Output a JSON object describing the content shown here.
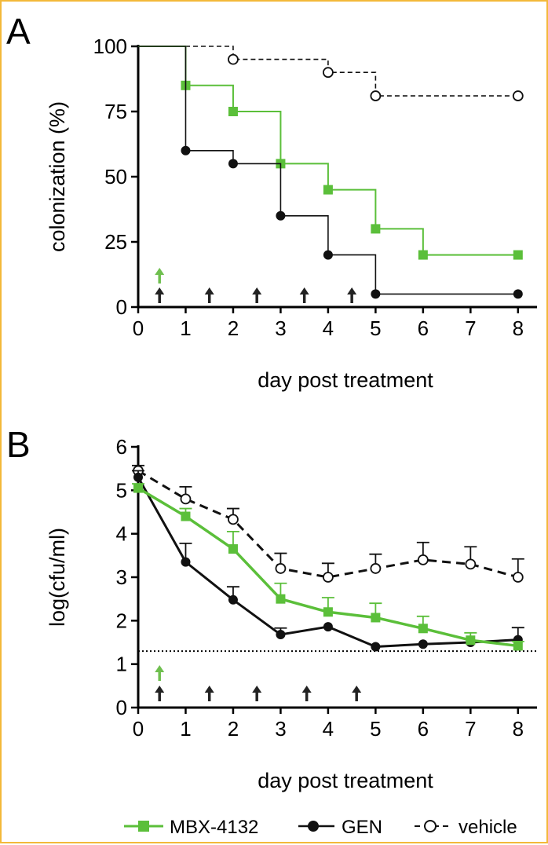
{
  "colors": {
    "frame": "#f3b93a",
    "mbx": "#5bbf3a",
    "gen": "#111111",
    "vehicle": "#111111",
    "arrow_dark": "#222222",
    "arrow_green": "#6fbf4f"
  },
  "chart_data": [
    {
      "panel": "A",
      "type": "line",
      "step": true,
      "xlabel": "day post treatment",
      "ylabel": "colonization (%)",
      "xlim": [
        0,
        8.4
      ],
      "ylim": [
        0,
        100
      ],
      "xticks": [
        0,
        1,
        2,
        3,
        4,
        5,
        6,
        7,
        8
      ],
      "yticks": [
        0,
        25,
        50,
        75,
        100
      ],
      "series": [
        {
          "key": "vehicle",
          "name": "vehicle",
          "x": [
            2,
            4,
            5,
            8
          ],
          "y": [
            95,
            90,
            81,
            81
          ],
          "start": [
            0,
            100
          ]
        },
        {
          "key": "mbx",
          "name": "MBX-4132",
          "x": [
            1,
            2,
            3,
            4,
            5,
            6,
            8
          ],
          "y": [
            85,
            75,
            55,
            45,
            30,
            20,
            20
          ],
          "start": [
            0,
            100
          ]
        },
        {
          "key": "gen",
          "name": "GEN",
          "x": [
            1,
            2,
            3,
            4,
            5,
            8
          ],
          "y": [
            60,
            55,
            35,
            20,
            5,
            5
          ],
          "start": [
            0,
            100
          ]
        }
      ],
      "dosing_days": {
        "dark": [
          0.45,
          1.5,
          2.5,
          3.5,
          4.5
        ],
        "green": [
          0.45
        ]
      }
    },
    {
      "panel": "B",
      "type": "line",
      "step": false,
      "xlabel": "day post treatment",
      "ylabel": "log(cfu/ml)",
      "xlim": [
        0,
        8.4
      ],
      "ylim": [
        0,
        6
      ],
      "xticks": [
        0,
        1,
        2,
        3,
        4,
        5,
        6,
        7,
        8
      ],
      "yticks": [
        0,
        1,
        2,
        3,
        4,
        5,
        6
      ],
      "detection_limit": 1.3,
      "series": [
        {
          "key": "vehicle",
          "name": "vehicle",
          "x": [
            0,
            1,
            2,
            3,
            4,
            5,
            6,
            7,
            8
          ],
          "y": [
            5.45,
            4.8,
            4.33,
            3.2,
            3.0,
            3.2,
            3.4,
            3.3,
            3.0
          ],
          "err": [
            0.12,
            0.28,
            0.25,
            0.35,
            0.32,
            0.33,
            0.4,
            0.4,
            0.42
          ]
        },
        {
          "key": "mbx",
          "name": "MBX-4132",
          "x": [
            0,
            1,
            2,
            3,
            4,
            5,
            6,
            7,
            8
          ],
          "y": [
            5.05,
            4.4,
            3.65,
            2.5,
            2.2,
            2.07,
            1.82,
            1.55,
            1.42
          ],
          "err": [
            0.1,
            0.18,
            0.4,
            0.36,
            0.33,
            0.33,
            0.28,
            0.17,
            0.1
          ]
        },
        {
          "key": "gen",
          "name": "GEN",
          "x": [
            0,
            1,
            2,
            3,
            4,
            5,
            6,
            7,
            8
          ],
          "y": [
            5.3,
            3.35,
            2.48,
            1.68,
            1.86,
            1.4,
            1.46,
            1.5,
            1.56
          ],
          "err": [
            0.15,
            0.43,
            0.3,
            0.15,
            0.0,
            0.0,
            0.0,
            0.0,
            0.28
          ]
        }
      ],
      "dosing_days": {
        "dark": [
          0.45,
          1.5,
          2.5,
          3.55,
          4.6
        ],
        "green": [
          0.45
        ]
      }
    }
  ],
  "panels": {
    "a_label": "A",
    "b_label": "B"
  },
  "legend": [
    {
      "key": "mbx",
      "label": "MBX-4132"
    },
    {
      "key": "gen",
      "label": "GEN"
    },
    {
      "key": "vehicle",
      "label": "vehicle"
    }
  ]
}
